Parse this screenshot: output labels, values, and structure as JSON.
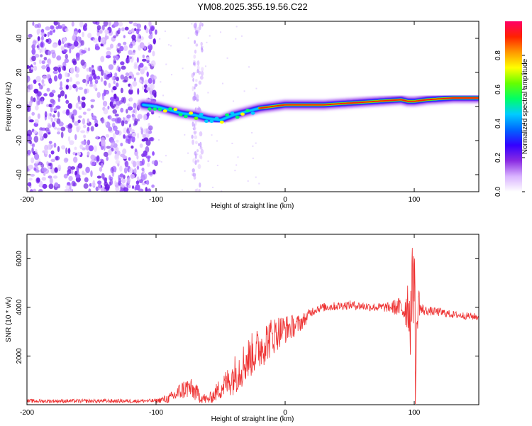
{
  "chart_data": [
    {
      "type": "heatmap",
      "title": "YM08.2025.355.19.56.C22",
      "xlabel": "Height of straight line (km)",
      "ylabel": "Frequency (Hz)",
      "xlim": [
        -200,
        150
      ],
      "ylim": [
        -50,
        50
      ],
      "x_ticks": [
        -200,
        -100,
        0,
        100
      ],
      "y_ticks": [
        -40,
        -20,
        0,
        20,
        40
      ],
      "ridge": {
        "description_points_x": [
          -110,
          -100,
          -90,
          -80,
          -70,
          -60,
          -50,
          -40,
          -30,
          -20,
          -10,
          0,
          10,
          30,
          50,
          70,
          90,
          95,
          100,
          110,
          130,
          150
        ],
        "frequency_hz": [
          1,
          0,
          -2,
          -4,
          -5,
          -7,
          -8,
          -5,
          -3,
          -1,
          0,
          1,
          1,
          1,
          2,
          3,
          4,
          3,
          3,
          4,
          5,
          5
        ]
      },
      "colorbar": {
        "label": "Normalized spectral amplitude",
        "range": [
          0,
          1
        ],
        "ticks": [
          "0.0",
          "0.2",
          "0.4",
          "0.6",
          "0.8"
        ],
        "colors": [
          "#ffffff",
          "#d9b3ff",
          "#8a2be2",
          "#3300ff",
          "#0066ff",
          "#00ccff",
          "#00ff66",
          "#66ff00",
          "#ffff00",
          "#ff9900",
          "#ff2200",
          "#ff0066"
        ]
      }
    },
    {
      "type": "line",
      "xlabel": "Height of straight line (km)",
      "ylabel": "SNR (10 * v/v)",
      "xlim": [
        -200,
        150
      ],
      "ylim": [
        0,
        7000
      ],
      "x_ticks": [
        -200,
        -100,
        0,
        100
      ],
      "y_ticks": [
        2000,
        4000,
        6000
      ],
      "color": "#ee3333",
      "series": [
        {
          "name": "SNR",
          "x": [
            -200,
            -150,
            -120,
            -100,
            -90,
            -85,
            -80,
            -75,
            -70,
            -65,
            -60,
            -55,
            -50,
            -45,
            -40,
            -35,
            -30,
            -25,
            -20,
            -15,
            -10,
            -5,
            0,
            5,
            10,
            15,
            20,
            25,
            30,
            40,
            50,
            60,
            70,
            80,
            88,
            92,
            95,
            97,
            99,
            100,
            101,
            103,
            105,
            110,
            120,
            130,
            140,
            150
          ],
          "values": [
            150,
            150,
            150,
            160,
            250,
            400,
            600,
            700,
            550,
            300,
            200,
            400,
            700,
            900,
            1200,
            1500,
            1800,
            2100,
            2300,
            2600,
            2800,
            3000,
            3100,
            3200,
            3300,
            3500,
            3800,
            3950,
            4000,
            4050,
            4100,
            4050,
            4000,
            4000,
            4000,
            3900,
            4200,
            3500,
            5000,
            6500,
            1000,
            4500,
            3900,
            3850,
            3800,
            3700,
            3650,
            3600
          ],
          "amplitude": [
            80,
            80,
            80,
            80,
            200,
            300,
            400,
            450,
            400,
            250,
            200,
            300,
            500,
            600,
            800,
            900,
            900,
            900,
            900,
            900,
            800,
            700,
            600,
            500,
            400,
            300,
            200,
            180,
            180,
            180,
            180,
            180,
            180,
            200,
            400,
            600,
            1200,
            1500,
            2000,
            2500,
            1500,
            800,
            300,
            180,
            180,
            150,
            150,
            150
          ]
        }
      ]
    }
  ]
}
